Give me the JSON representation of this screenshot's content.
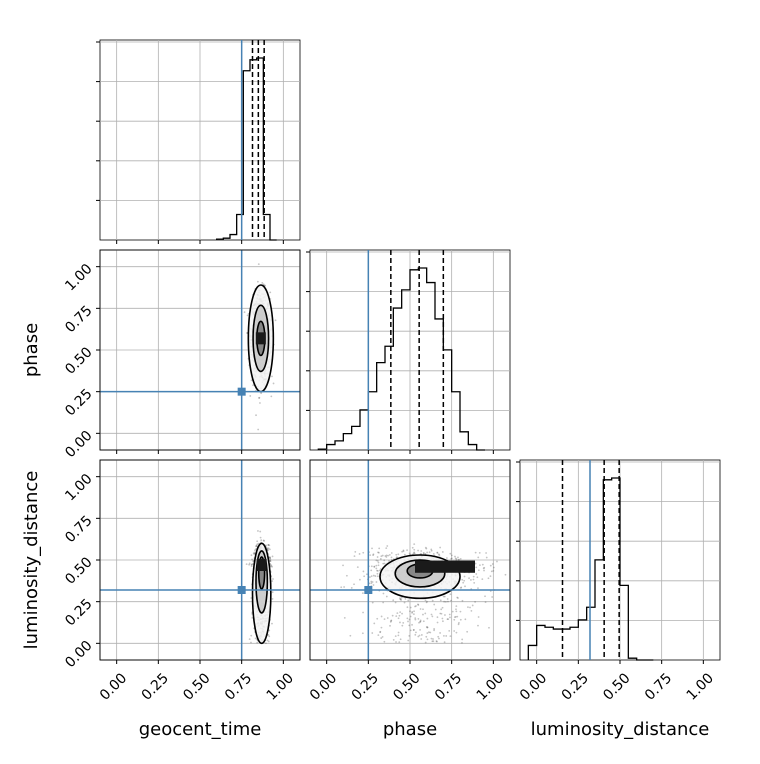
{
  "colors": {
    "truth": "#4682b4",
    "hist": "#000000",
    "grid": "#b0b0b0",
    "scatter": "#555555"
  },
  "chart_data": {
    "type": "corner",
    "parameters": [
      "geocent_time",
      "phase",
      "luminosity_distance"
    ],
    "axis_range": [
      -0.1,
      1.1
    ],
    "tick_values": [
      0.0,
      0.25,
      0.5,
      0.75,
      1.0
    ],
    "tick_labels": [
      "0.00",
      "0.25",
      "0.50",
      "0.75",
      "1.00"
    ],
    "grid": true,
    "truths": {
      "geocent_time": 0.75,
      "phase": 0.25,
      "luminosity_distance": 0.32
    },
    "quantiles": {
      "geocent_time": [
        0.815,
        0.85,
        0.885
      ],
      "phase": [
        0.385,
        0.555,
        0.7
      ],
      "luminosity_distance": [
        0.155,
        0.405,
        0.495
      ]
    },
    "histograms": {
      "geocent_time": {
        "bin_edges": [
          0.6,
          0.64,
          0.68,
          0.72,
          0.76,
          0.8,
          0.84,
          0.88,
          0.92,
          0.96
        ],
        "counts": [
          0.005,
          0.01,
          0.03,
          0.14,
          0.93,
          0.99,
          1.0,
          0.14,
          0.0
        ]
      },
      "phase": {
        "bin_edges": [
          -0.05,
          0.0,
          0.05,
          0.1,
          0.15,
          0.2,
          0.25,
          0.3,
          0.35,
          0.4,
          0.45,
          0.5,
          0.55,
          0.6,
          0.65,
          0.7,
          0.75,
          0.8,
          0.85,
          0.9,
          0.95
        ],
        "counts": [
          0.005,
          0.03,
          0.05,
          0.09,
          0.13,
          0.22,
          0.32,
          0.48,
          0.57,
          0.78,
          0.88,
          0.99,
          1.0,
          0.92,
          0.72,
          0.55,
          0.32,
          0.1,
          0.03,
          0.0
        ]
      },
      "luminosity_distance": {
        "bin_edges": [
          -0.05,
          0.0,
          0.05,
          0.1,
          0.15,
          0.2,
          0.25,
          0.3,
          0.35,
          0.4,
          0.45,
          0.5,
          0.55,
          0.6,
          0.65,
          0.7
        ],
        "counts": [
          0.08,
          0.19,
          0.18,
          0.17,
          0.17,
          0.18,
          0.22,
          0.29,
          0.55,
          0.99,
          1.0,
          0.41,
          0.01,
          0.0,
          0.0
        ]
      }
    },
    "joint": [
      {
        "x": "geocent_time",
        "y": "phase",
        "center": [
          0.865,
          0.57
        ],
        "spread": [
          0.035,
          0.17
        ]
      },
      {
        "x": "geocent_time",
        "y": "luminosity_distance",
        "center": [
          0.87,
          0.42
        ],
        "spread": [
          0.03,
          0.15
        ]
      },
      {
        "x": "phase",
        "y": "luminosity_distance",
        "center": [
          0.56,
          0.42
        ],
        "spread": [
          0.17,
          0.1
        ]
      }
    ]
  }
}
